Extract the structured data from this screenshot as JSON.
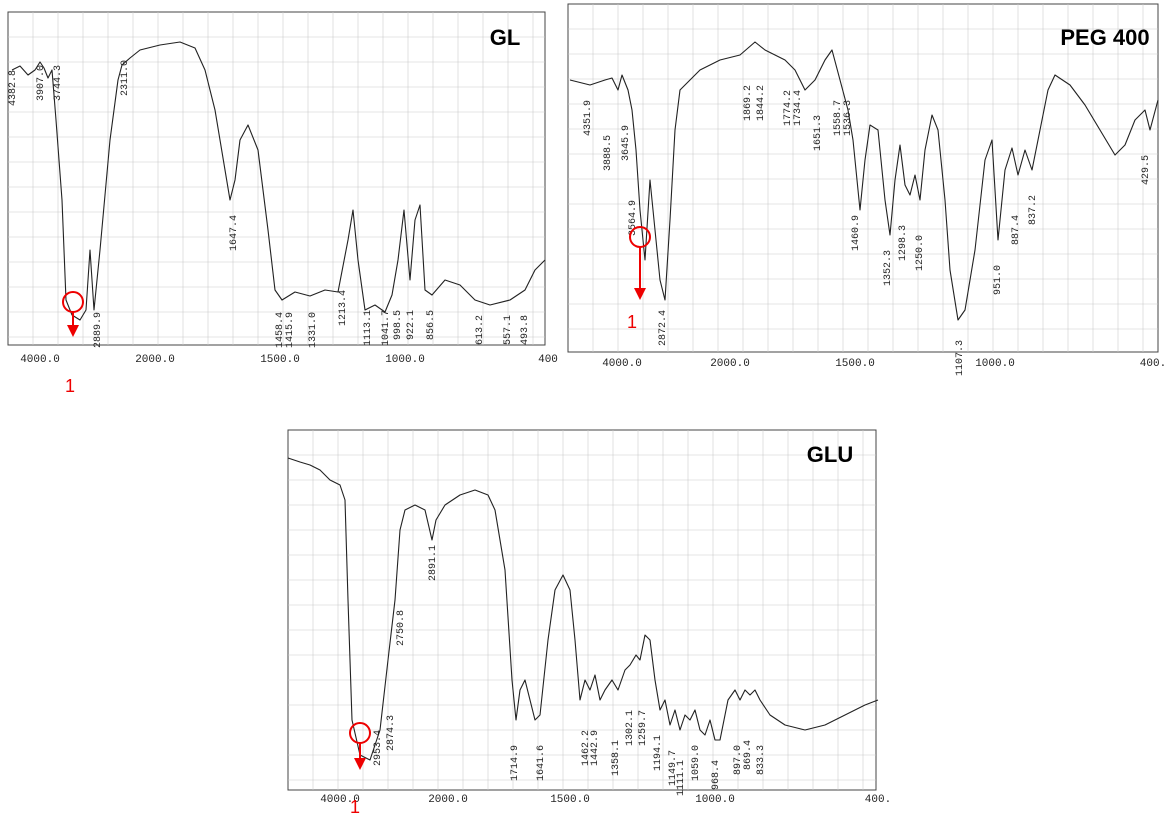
{
  "panels": [
    {
      "title": "GL",
      "x_tick_labels": [
        "4000.0",
        "2000.0",
        "1500.0",
        "1000.0",
        "400"
      ],
      "peak_labels": [
        "4382.8",
        "3907.0",
        "3744.3",
        "2311.0",
        "1647.4",
        "2889.9",
        "1458.4",
        "1415.9",
        "1331.0",
        "1213.4",
        "1113.1",
        "1041.7",
        "998.5",
        "922.1",
        "856.5",
        "613.2",
        "557.1",
        "493.8"
      ],
      "marker_label": "1"
    },
    {
      "title": "PEG 400",
      "x_tick_labels": [
        "4000.0",
        "2000.0",
        "1500.0",
        "1000.0",
        "400."
      ],
      "peak_labels": [
        "4351.9",
        "3888.5",
        "3645.9",
        "3564.9",
        "2872.4",
        "1869.2",
        "1844.2",
        "1774.2",
        "1734.4",
        "1651.3",
        "1558.7",
        "1536.3",
        "1460.9",
        "1352.3",
        "1298.3",
        "1250.0",
        "1107.3",
        "951.0",
        "887.4",
        "837.2",
        "429.5"
      ],
      "marker_label": "1"
    },
    {
      "title": "GLU",
      "x_tick_labels": [
        "4000.0",
        "2000.0",
        "1500.0",
        "1000.0",
        "400."
      ],
      "peak_labels": [
        "2891.1",
        "2750.8",
        "2874.3",
        "2953.4",
        "1714.9",
        "1641.6",
        "1462.2",
        "1442.9",
        "1358.1",
        "1302.1",
        "1259.7",
        "1194.1",
        "1149.7",
        "1111.1",
        "1059.0",
        "968.4",
        "897.0",
        "869.4",
        "833.3"
      ],
      "marker_label": "1"
    }
  ]
}
